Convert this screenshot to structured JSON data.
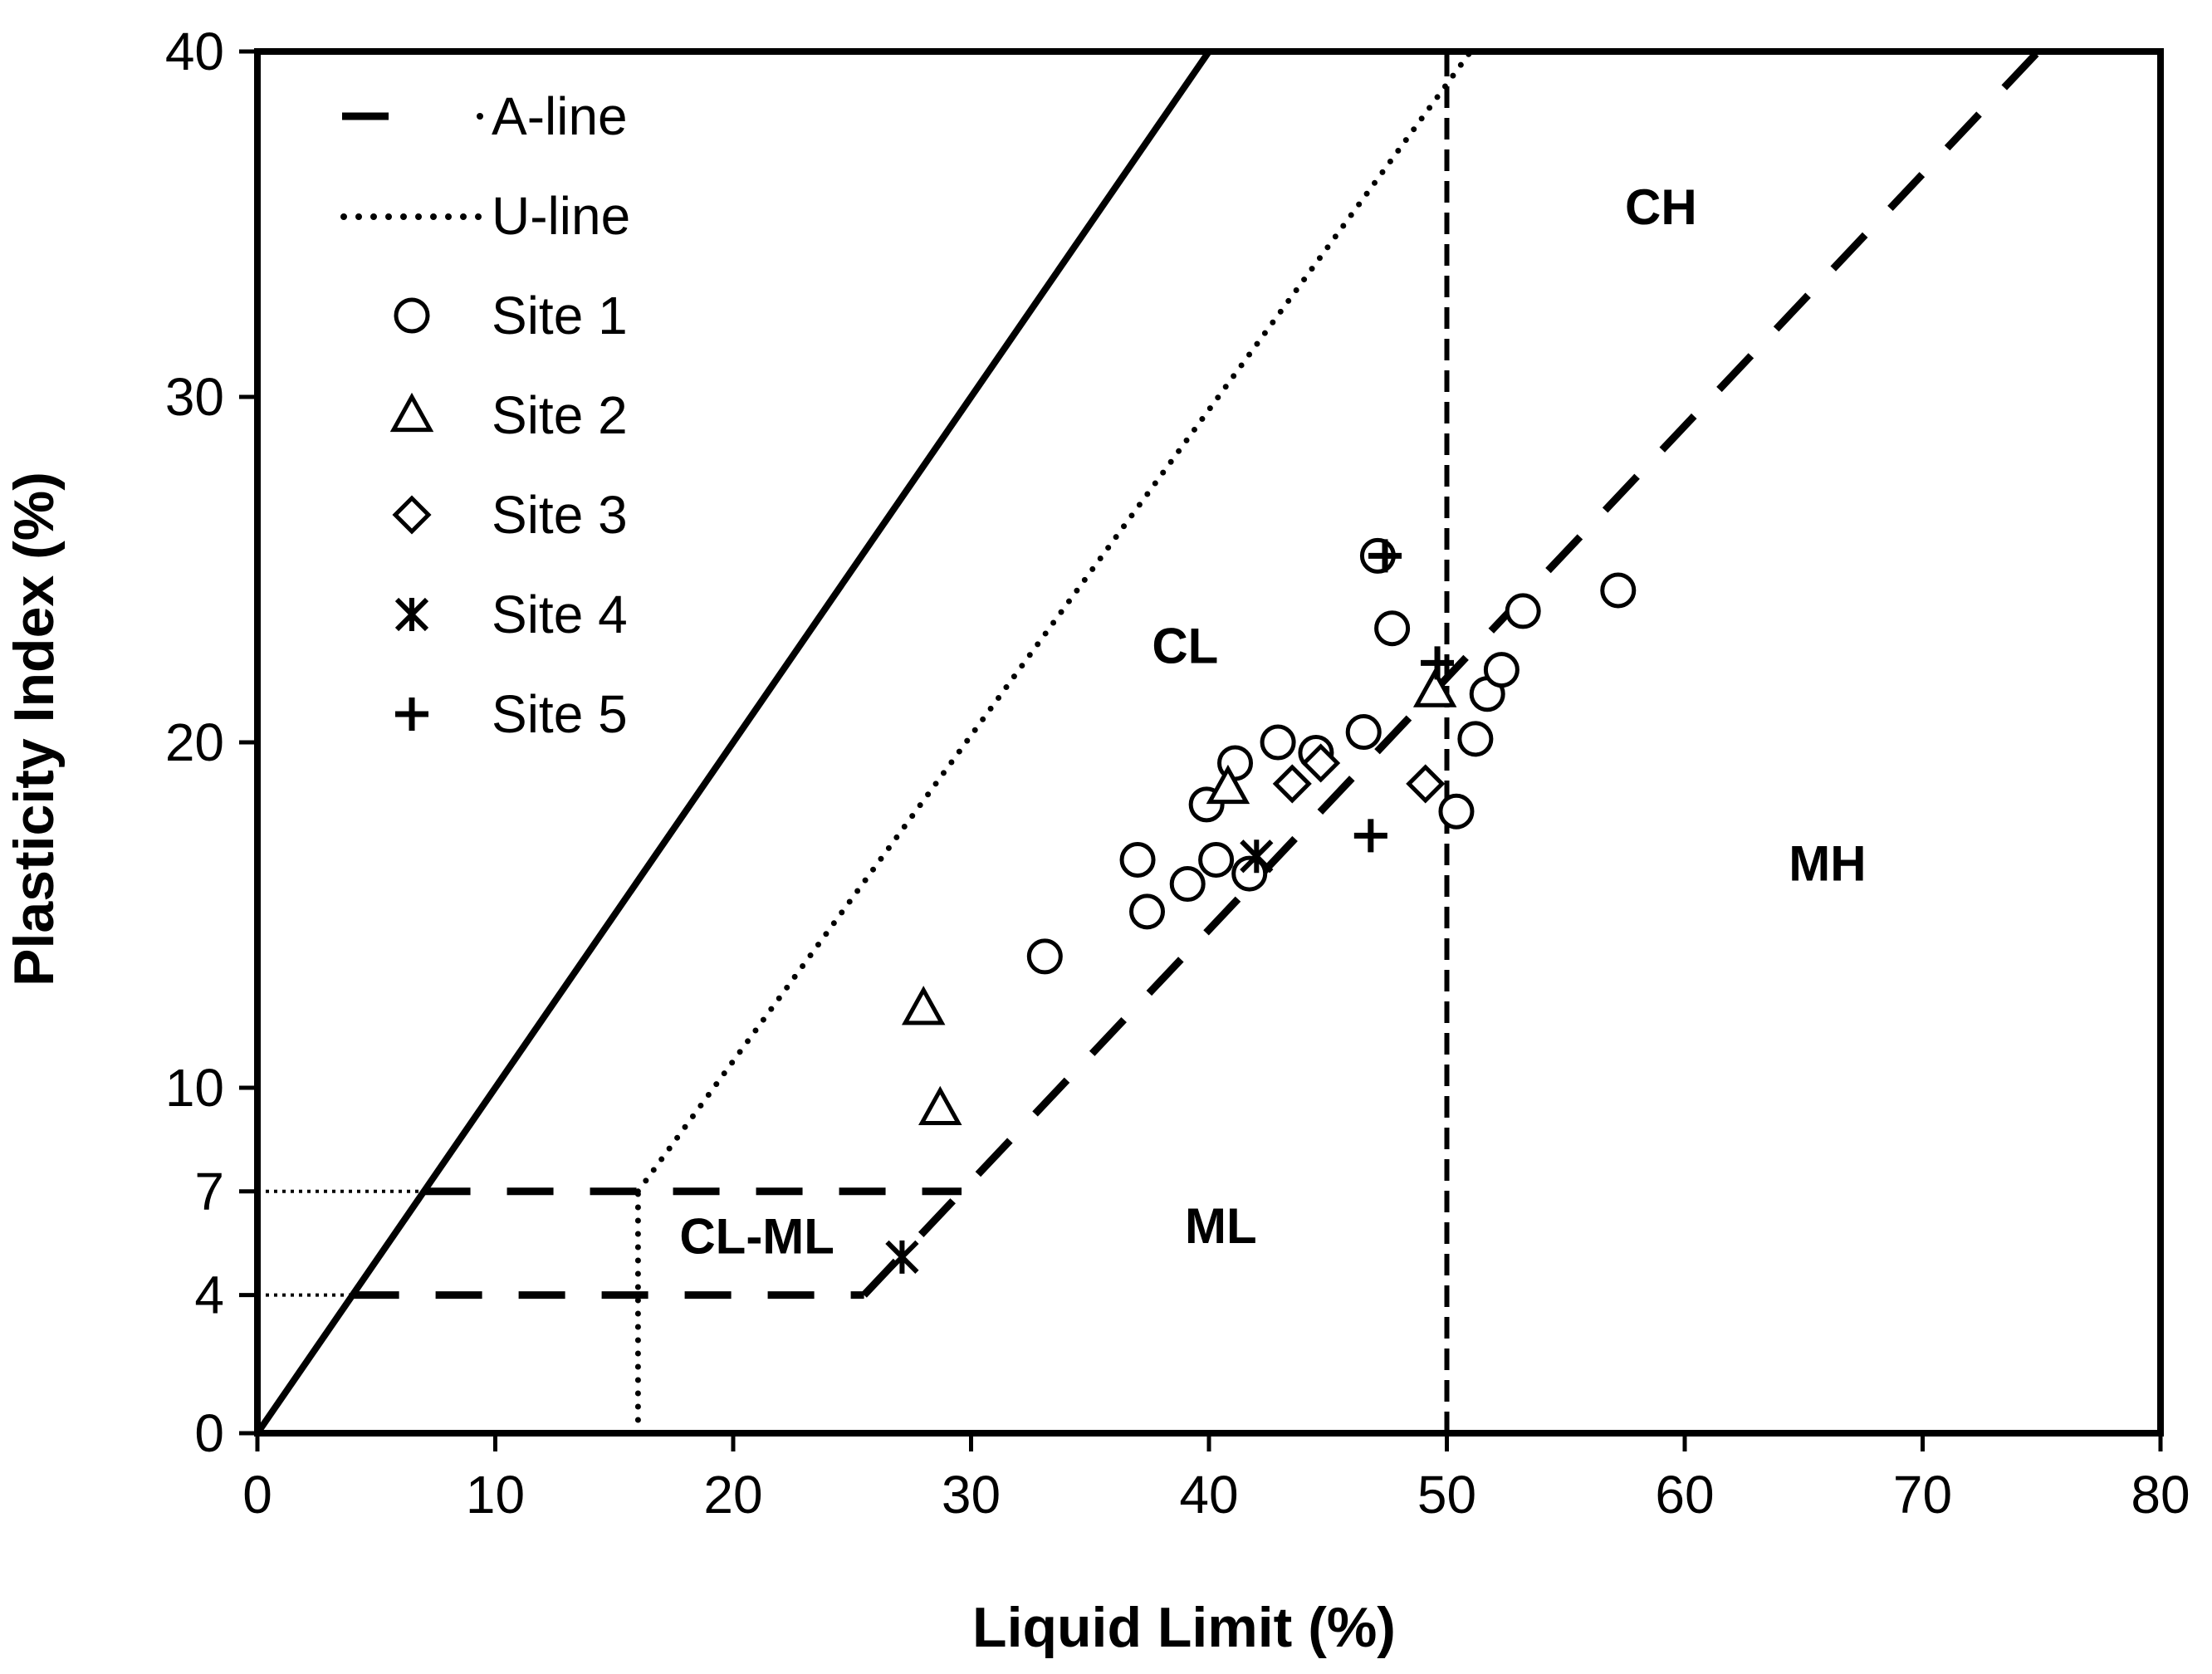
{
  "chart_data": {
    "type": "scatter",
    "title": "",
    "xlabel": "Liquid Limit (%)",
    "ylabel": "Plasticity Index (%)",
    "xlim": [
      0,
      80
    ],
    "ylim": [
      0,
      40
    ],
    "x_ticks": [
      0,
      10,
      20,
      30,
      40,
      50,
      60,
      70,
      80
    ],
    "y_ticks": [
      0,
      4,
      7,
      10,
      20,
      30,
      40
    ],
    "legend": [
      "A-line",
      "U-line",
      "Site 1",
      "Site 2",
      "Site 3",
      "Site 4",
      "Site 5"
    ],
    "reference_lines": [
      {
        "name": "A-line",
        "style": "dashed",
        "points": [
          [
            25.5,
            4
          ],
          [
            75,
            40.1
          ]
        ]
      },
      {
        "name": "A-line",
        "style": "dashed",
        "points": [
          [
            4,
            4
          ],
          [
            25.5,
            4
          ]
        ]
      },
      {
        "name": "A-line",
        "style": "dashed",
        "points": [
          [
            7,
            7
          ],
          [
            29.6,
            7
          ]
        ]
      },
      {
        "name": "U-line",
        "style": "dotted",
        "points": [
          [
            16,
            7
          ],
          [
            51,
            40
          ]
        ]
      },
      {
        "name": "U-line",
        "style": "dotted",
        "points": [
          [
            16,
            0
          ],
          [
            16,
            7
          ]
        ]
      },
      {
        "name": "",
        "style": "solid",
        "points": [
          [
            0,
            0
          ],
          [
            40,
            40
          ]
        ]
      },
      {
        "name": "",
        "style": "dashed-vertical",
        "points": [
          [
            50,
            0
          ],
          [
            50,
            40
          ]
        ]
      },
      {
        "name": "",
        "style": "fine-dotted",
        "points": [
          [
            0,
            7
          ],
          [
            7,
            7
          ]
        ]
      },
      {
        "name": "",
        "style": "fine-dotted",
        "points": [
          [
            0,
            4
          ],
          [
            4,
            4
          ]
        ]
      }
    ],
    "regions": [
      {
        "label": "CH",
        "x": 59,
        "y": 35
      },
      {
        "label": "CL",
        "x": 39,
        "y": 22.3
      },
      {
        "label": "MH",
        "x": 66,
        "y": 16
      },
      {
        "label": "ML",
        "x": 40.5,
        "y": 5.5
      },
      {
        "label": "CL-ML",
        "x": 21,
        "y": 5.2
      }
    ],
    "series": [
      {
        "name": "Site 1",
        "marker": "circle",
        "points": [
          [
            33.1,
            13.8
          ],
          [
            37.0,
            16.6
          ],
          [
            37.4,
            15.1
          ],
          [
            39.1,
            15.9
          ],
          [
            40.3,
            16.6
          ],
          [
            39.9,
            18.2
          ],
          [
            41.1,
            19.4
          ],
          [
            41.7,
            16.2
          ],
          [
            42.9,
            20.0
          ],
          [
            44.5,
            19.7
          ],
          [
            46.5,
            20.3
          ],
          [
            47.1,
            25.4
          ],
          [
            47.7,
            23.3
          ],
          [
            50.4,
            18.0
          ],
          [
            51.2,
            20.1
          ],
          [
            51.7,
            21.4
          ],
          [
            52.3,
            22.1
          ],
          [
            53.2,
            23.8
          ],
          [
            57.2,
            24.4
          ]
        ]
      },
      {
        "name": "Site 2",
        "marker": "triangle",
        "points": [
          [
            28.0,
            12.3
          ],
          [
            28.7,
            9.4
          ],
          [
            40.8,
            18.7
          ],
          [
            49.5,
            21.5
          ]
        ]
      },
      {
        "name": "Site 3",
        "marker": "diamond",
        "points": [
          [
            43.5,
            18.8
          ],
          [
            44.7,
            19.4
          ],
          [
            49.1,
            18.8
          ]
        ]
      },
      {
        "name": "Site 4",
        "marker": "asterisk",
        "points": [
          [
            27.1,
            5.1
          ],
          [
            42.0,
            16.7
          ]
        ]
      },
      {
        "name": "Site 5",
        "marker": "plus",
        "points": [
          [
            46.8,
            17.3
          ],
          [
            47.4,
            25.4
          ],
          [
            49.6,
            22.3
          ]
        ]
      }
    ]
  }
}
